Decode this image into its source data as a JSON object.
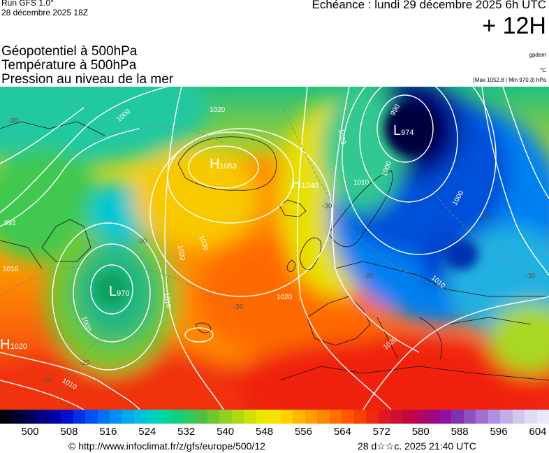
{
  "header": {
    "run_label": "Run GFS 1.0°",
    "run_date": "28 décembre 2025 18Z",
    "echeance": "Echéance : lundi 29 décembre 2025 6h UTC",
    "lead": "+ 12H"
  },
  "titles": {
    "line1": "Géopotentiel à 500hPa",
    "line2": "Température à 500hPa",
    "line3": "Pression au niveau de la mer"
  },
  "units": {
    "geopotential": "gpdam",
    "temperature": "°C",
    "pressure_range": "[Max 1052.8 | Min 970.3] hPa"
  },
  "map_labels": {
    "centers": [
      {
        "type": "H",
        "value": "1053"
      },
      {
        "type": "H",
        "value": "1040"
      },
      {
        "type": "L",
        "value": "974"
      },
      {
        "type": "L",
        "value": "970"
      },
      {
        "type": "H",
        "value": "1020"
      }
    ],
    "isobars": [
      "1020",
      "1020",
      "1010",
      "1000",
      "990",
      "1000",
      "1010",
      "1020",
      "1030",
      "1020",
      "1010",
      "1000",
      "1010",
      "1020",
      "1010",
      "1000",
      "992"
    ],
    "isotherms": [
      "-30",
      "-30",
      "-20",
      "-20",
      "-30",
      "-20",
      "-20",
      "-20",
      "-30"
    ]
  },
  "colorbar": {
    "labels": [
      "500",
      "508",
      "516",
      "524",
      "532",
      "540",
      "548",
      "556",
      "564",
      "572",
      "580",
      "588",
      "596",
      "604"
    ],
    "colors": [
      "#000010",
      "#000030",
      "#00005a",
      "#000080",
      "#0000aa",
      "#0010cc",
      "#0030e6",
      "#0050f0",
      "#0070f5",
      "#0090f5",
      "#00a8f0",
      "#00c0e0",
      "#00d0c0",
      "#00d8a0",
      "#10d080",
      "#30c860",
      "#50c040",
      "#70c830",
      "#90d020",
      "#b0d810",
      "#d0e000",
      "#e8e800",
      "#f8e000",
      "#ffd000",
      "#ffb800",
      "#ffa000",
      "#ff8800",
      "#ff7000",
      "#ff5800",
      "#f84000",
      "#f02810",
      "#e01820",
      "#d01030",
      "#c00840",
      "#b00860",
      "#a00880",
      "#9010a0",
      "#8030b0",
      "#9050c0",
      "#a070d0",
      "#b090e0",
      "#c0b0e8",
      "#d0c8f0",
      "#e0dcf5",
      "#e8e8f8"
    ]
  },
  "footer": {
    "url": "© http://www.infoclimat.fr/z/gfs/europe/500/12",
    "timestamp": "28 d☆☆c. 2025 21:40 UTC"
  }
}
